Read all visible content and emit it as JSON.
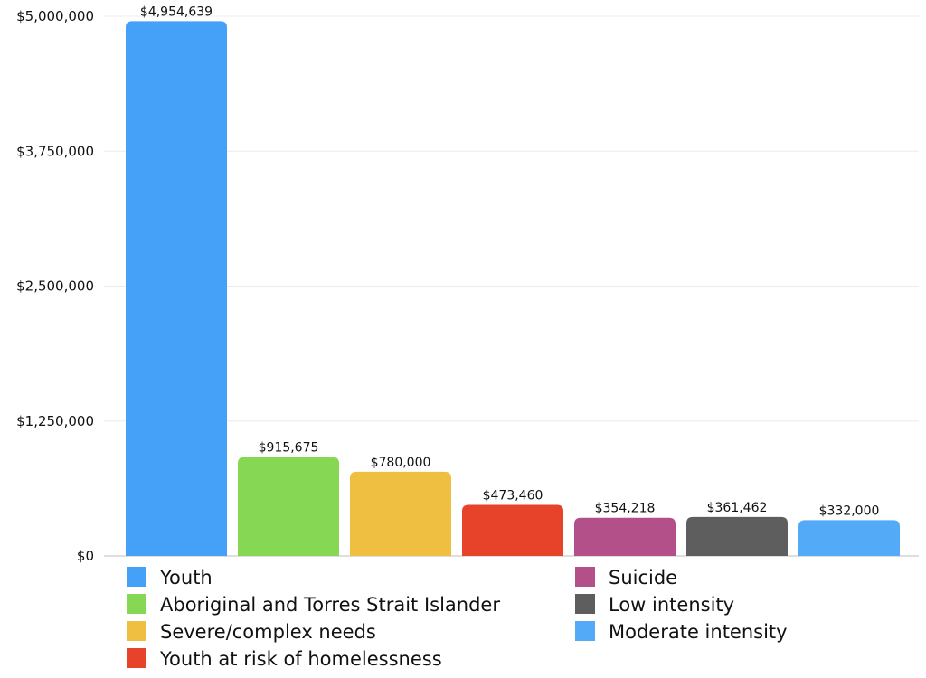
{
  "chart_data": {
    "type": "bar",
    "categories": [
      "Youth",
      "Aboriginal and Torres Strait Islander",
      "Severe/complex needs",
      "Youth at risk of homelessness",
      "Suicide",
      "Low intensity",
      "Moderate intensity"
    ],
    "values": [
      4954639,
      915675,
      780000,
      473460,
      354218,
      361462,
      332000
    ],
    "value_labels": [
      "$4,954,639",
      "$915,675",
      "$780,000",
      "$473,460",
      "$354,218",
      "$361,462",
      "$332,000"
    ],
    "colors": [
      "#45A0F7",
      "#85D754",
      "#EFBF41",
      "#E6432A",
      "#B3508A",
      "#5E5E5E",
      "#53ABF8"
    ],
    "ylim": [
      0,
      5000000
    ],
    "yticks": [
      0,
      1250000,
      2500000,
      3750000,
      5000000
    ],
    "ytick_labels": [
      "$0",
      "$1,250,000",
      "$2,500,000",
      "$3,750,000",
      "$5,000,000"
    ],
    "grid": true,
    "legend_position": "bottom",
    "title": "",
    "xlabel": "",
    "ylabel": ""
  }
}
